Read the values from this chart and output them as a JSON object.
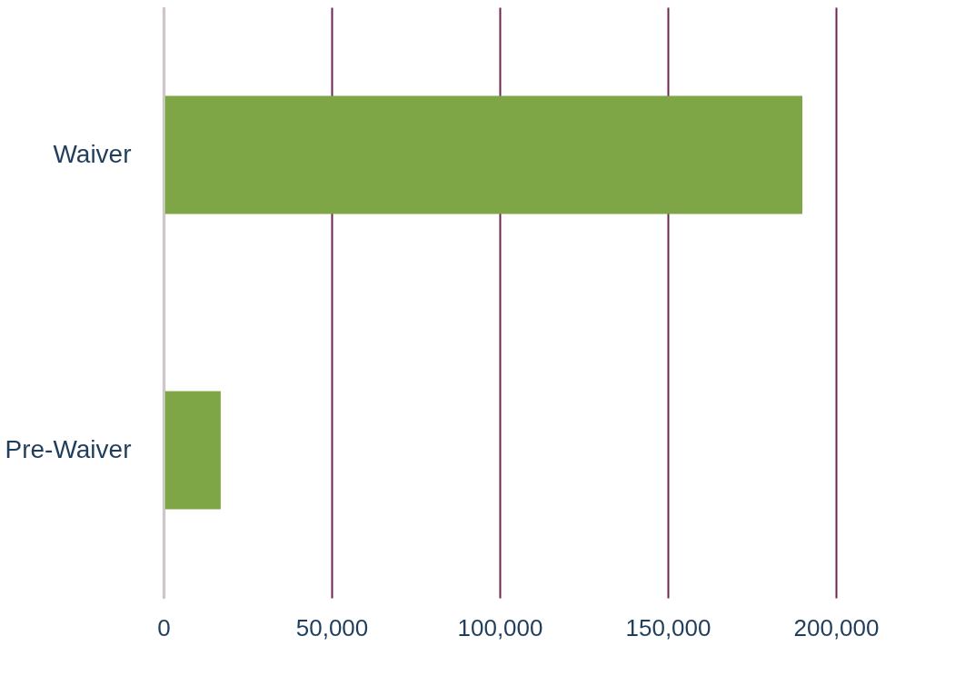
{
  "chart_data": {
    "type": "bar",
    "orientation": "horizontal",
    "categories": [
      "Waiver",
      "Pre-Waiver"
    ],
    "values": [
      190000,
      17000
    ],
    "color": "#7fa646",
    "xlim": [
      0,
      200000
    ],
    "xticks": [
      {
        "value": 0,
        "label": "0"
      },
      {
        "value": 50000,
        "label": "50,000"
      },
      {
        "value": 100000,
        "label": "100,000"
      },
      {
        "value": 150000,
        "label": "150,000"
      },
      {
        "value": 200000,
        "label": "200,000"
      }
    ],
    "grid": "x"
  }
}
